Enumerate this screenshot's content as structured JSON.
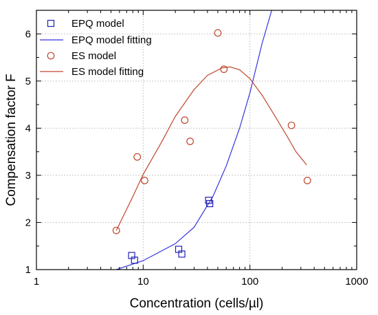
{
  "chart_data": {
    "type": "scatter",
    "xlabel": "Concentration (cells/µl)",
    "ylabel": "Compensation factor F",
    "x_scale": "log",
    "xlim": [
      1,
      1000
    ],
    "ylim": [
      1,
      6.5
    ],
    "x_ticks": [
      1,
      10,
      100,
      1000
    ],
    "x_tick_labels": [
      "1",
      "10",
      "100",
      "1000"
    ],
    "y_ticks": [
      1,
      2,
      3,
      4,
      5,
      6
    ],
    "y_tick_labels": [
      "1",
      "2",
      "3",
      "4",
      "5",
      "6"
    ],
    "grid": true,
    "legend_position": "top-left",
    "series": [
      {
        "name": "EPQ model",
        "kind": "markers",
        "marker": "square",
        "color": "#1f1fb4",
        "points": [
          [
            7.8,
            1.3
          ],
          [
            8.3,
            1.2
          ],
          [
            21.5,
            1.43
          ],
          [
            23.0,
            1.33
          ],
          [
            41.0,
            2.47
          ],
          [
            42.0,
            2.4
          ]
        ]
      },
      {
        "name": "EPQ model fitting",
        "kind": "line",
        "color": "#3333dd",
        "points": [
          [
            5.6,
            1.0
          ],
          [
            10,
            1.19
          ],
          [
            20,
            1.55
          ],
          [
            30,
            1.9
          ],
          [
            45,
            2.55
          ],
          [
            60,
            3.2
          ],
          [
            80,
            4.0
          ],
          [
            100,
            4.75
          ],
          [
            130,
            5.8
          ],
          [
            160,
            6.5
          ]
        ]
      },
      {
        "name": "ES model",
        "kind": "markers",
        "marker": "circle",
        "color": "#c0452a",
        "points": [
          [
            5.6,
            1.83
          ],
          [
            8.8,
            3.39
          ],
          [
            10.3,
            2.89
          ],
          [
            24.5,
            4.17
          ],
          [
            27.5,
            3.72
          ],
          [
            50,
            6.02
          ],
          [
            57,
            5.25
          ],
          [
            245,
            4.06
          ],
          [
            345,
            2.89
          ]
        ]
      },
      {
        "name": "ES model fitting",
        "kind": "line",
        "color": "#c0452a",
        "points": [
          [
            5.6,
            1.83
          ],
          [
            8,
            2.55
          ],
          [
            10,
            3.02
          ],
          [
            15,
            3.72
          ],
          [
            20,
            4.25
          ],
          [
            30,
            4.82
          ],
          [
            40,
            5.12
          ],
          [
            55,
            5.28
          ],
          [
            65,
            5.3
          ],
          [
            80,
            5.24
          ],
          [
            100,
            5.05
          ],
          [
            130,
            4.7
          ],
          [
            170,
            4.27
          ],
          [
            220,
            3.85
          ],
          [
            270,
            3.5
          ],
          [
            340,
            3.22
          ]
        ]
      }
    ]
  }
}
